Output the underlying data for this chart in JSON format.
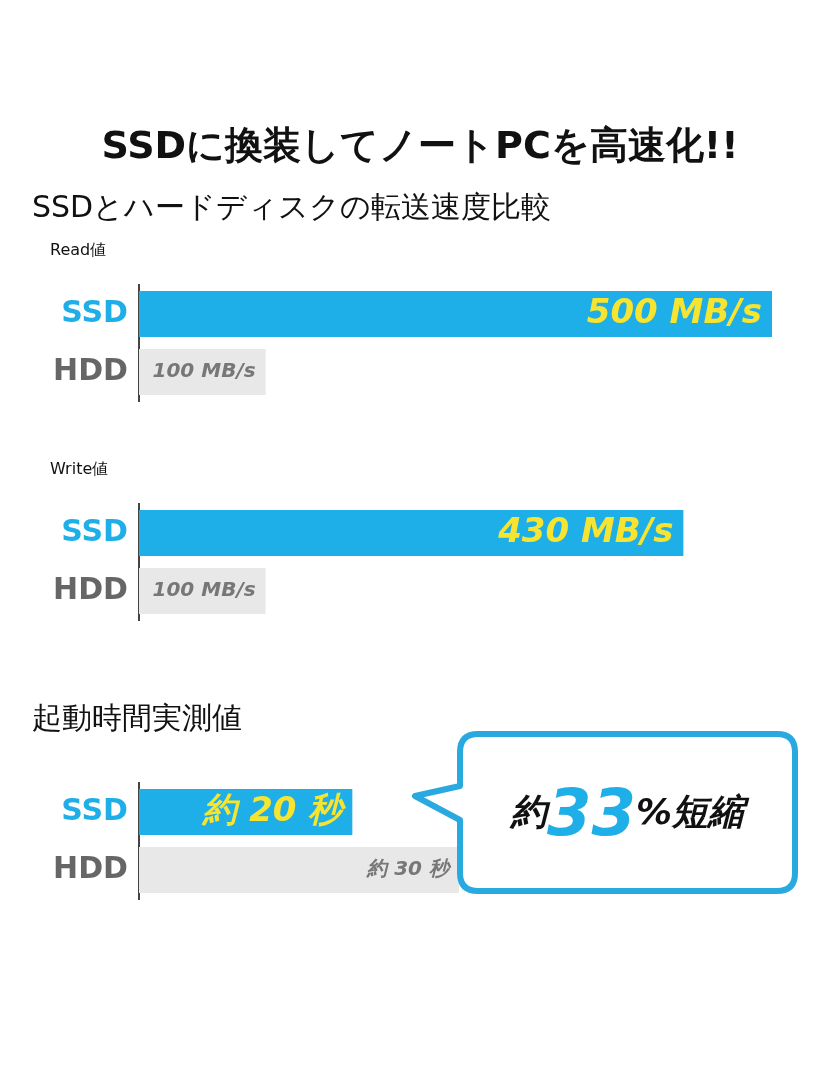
{
  "chart_data": [
    {
      "type": "bar",
      "orientation": "horizontal",
      "title": "SSDに換装してノートPCを高速化!!",
      "subtitle": "SSDとハードディスクの転送速度比較",
      "ylabel": "Read値",
      "categories": [
        "SSD",
        "HDD"
      ],
      "values": [
        500,
        100
      ],
      "colors": [
        "#1eaee8",
        "#e8e8e8"
      ],
      "value_labels": [
        "500 MB/s",
        "100 MB/s"
      ],
      "legend": false
    },
    {
      "type": "bar",
      "orientation": "horizontal",
      "ylabel": "Write値",
      "categories": [
        "SSD",
        "HDD"
      ],
      "values": [
        430,
        100
      ],
      "colors": [
        "#1eaee8",
        "#e8e8e8"
      ],
      "value_labels": [
        "430 MB/s",
        "100 MB/s"
      ],
      "legend": false
    },
    {
      "type": "bar",
      "orientation": "horizontal",
      "subtitle": "起動時間実測値",
      "categories": [
        "SSD",
        "HDD"
      ],
      "values": [
        20,
        30
      ],
      "colors": [
        "#1eaee8",
        "#e8e8e8"
      ],
      "value_labels": [
        "約 20 秒",
        "約 30 秒"
      ],
      "legend": false,
      "annotations": [
        "約33%短縮"
      ]
    }
  ]
}
